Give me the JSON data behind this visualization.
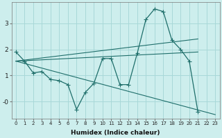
{
  "xlabel": "Humidex (Indice chaleur)",
  "background_color": "#cdeeed",
  "grid_color": "#a8d8d8",
  "line_color": "#1e6e6a",
  "xlim": [
    -0.5,
    23.5
  ],
  "ylim": [
    -0.65,
    3.8
  ],
  "yticks": [
    0,
    1,
    2,
    3
  ],
  "ytick_labels": [
    "-0",
    "1",
    "2",
    "3"
  ],
  "xticks": [
    0,
    1,
    2,
    3,
    4,
    5,
    6,
    7,
    8,
    9,
    10,
    11,
    12,
    13,
    14,
    15,
    16,
    17,
    18,
    19,
    20,
    21,
    22,
    23
  ],
  "line1_x": [
    0,
    1,
    2,
    3,
    4,
    5,
    6,
    7,
    8,
    9,
    10,
    11,
    12,
    13,
    14,
    15,
    16,
    17,
    18,
    19,
    20,
    21
  ],
  "line1_y": [
    1.9,
    1.55,
    1.1,
    1.15,
    0.85,
    0.8,
    0.65,
    -0.3,
    0.35,
    0.7,
    1.65,
    1.65,
    0.65,
    0.65,
    1.85,
    3.15,
    3.55,
    3.45,
    2.35,
    2.0,
    1.55,
    -0.4
  ],
  "line2_x": [
    0,
    21
  ],
  "line2_y": [
    1.55,
    1.9
  ],
  "line3_x": [
    0,
    23
  ],
  "line3_y": [
    1.55,
    -0.5
  ],
  "line4_x": [
    0,
    21
  ],
  "line4_y": [
    1.55,
    2.4
  ]
}
